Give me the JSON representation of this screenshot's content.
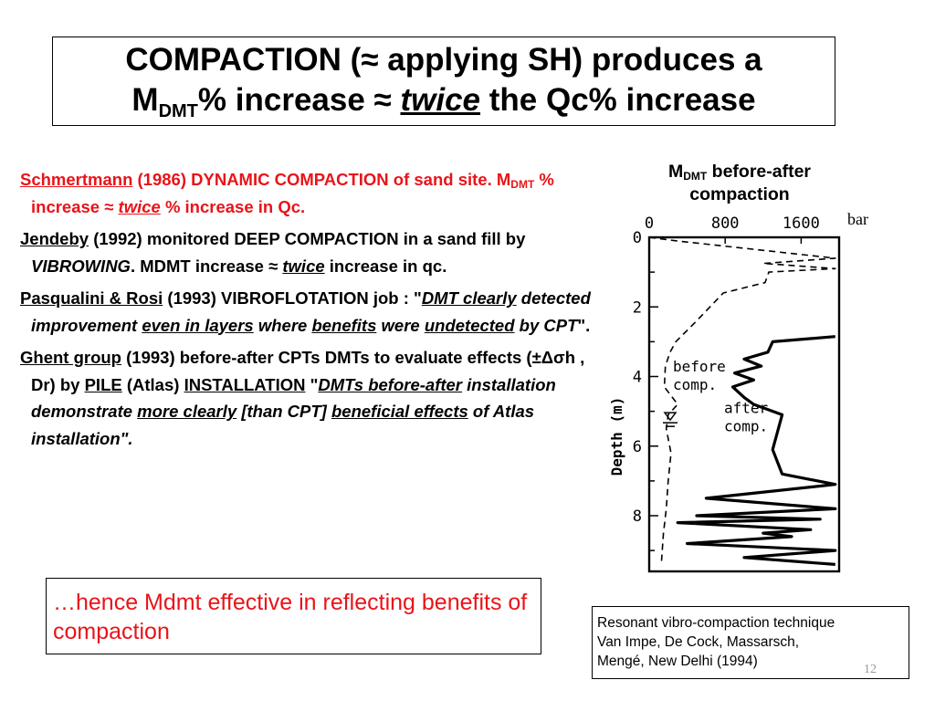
{
  "title": {
    "part1": "COMPACTION (",
    "approx1": "≈",
    "part2": " applying SH) produces a",
    "m": "M",
    "m_sub": "DMT",
    "part3": "% increase ",
    "approx2": "≈",
    "space": " ",
    "twice": "twice",
    "part4": "  the  Qc% increase"
  },
  "bullets": {
    "b1": {
      "author": "Schmertmann",
      "t1": " (1986) DYNAMIC COMPACTION of sand site. M",
      "sub": "DMT",
      "t2": " % increase ≈ ",
      "twice": "twice",
      "t3": " % increase in Qc."
    },
    "b2": {
      "author": "Jendeby",
      "t1": " (1992) monitored DEEP COMPACTION in a sand fill by ",
      "method": "VIBROWING",
      "t2": ". MDMT increase ≈ ",
      "twice": "twice",
      "t3": " increase in qc."
    },
    "b3": {
      "author": "Pasqualini & Rosi",
      "t1": " (1993) VIBROFLOTATION job : \"",
      "q1": "DMT clearly",
      "q2": " detected improvement ",
      "q3": "even in layers",
      "q4": " where ",
      "q5": "benefits",
      "q6": " were ",
      "q7": "undetected",
      "q8": " by CPT",
      "t2": "\"."
    },
    "b4": {
      "author": "Ghent group",
      "t1": " (1993) before-after CPTs DMTs to evaluate effects (±Δσh , Dr) by ",
      "pile": "PILE",
      "t2": " (Atlas) ",
      "installation": "INSTALLATION",
      "t3": " \"",
      "q1": "DMTs before-after",
      "q2": " installation demonstrate ",
      "q3": "more clearly",
      "q4": " [than CPT] ",
      "q5": "beneficial effects",
      "q6": " of Atlas installation\"."
    }
  },
  "conclusion": "…hence Mdmt effective in reflecting benefits of compaction",
  "chart_title": {
    "m": "M",
    "sub": "DMT",
    "rest": " before-after compaction"
  },
  "unit_label": "bar",
  "reference": {
    "line1": "Resonant vibro-compaction technique",
    "line2": "Van Impe, De Cock, Massarsch,",
    "line3": "Mengé, New Delhi (1994)"
  },
  "page_number": "12",
  "chart_data": {
    "type": "line",
    "x_ticks": [
      "0",
      "800",
      "1600"
    ],
    "y_ticks": [
      "0",
      "2",
      "4",
      "6",
      "8"
    ],
    "ylabel": "Depth  (m)",
    "xlim": [
      0,
      2000
    ],
    "ylim": [
      0,
      9.6
    ],
    "annotations": [
      "before\ncomp.",
      "after\ncomp."
    ],
    "series": [
      {
        "name": "before comp.",
        "style": "dashed",
        "points": [
          [
            0,
            0
          ],
          [
            280,
            0.1
          ],
          [
            1960,
            0.6
          ],
          [
            1200,
            0.75
          ],
          [
            1960,
            0.9
          ],
          [
            1260,
            1.0
          ],
          [
            1220,
            1.3
          ],
          [
            780,
            1.6
          ],
          [
            500,
            2.4
          ],
          [
            280,
            3.0
          ],
          [
            220,
            3.3
          ],
          [
            170,
            3.7
          ],
          [
            160,
            4.3
          ],
          [
            300,
            4.8
          ],
          [
            200,
            5.1
          ],
          [
            180,
            5.5
          ],
          [
            230,
            6.2
          ],
          [
            200,
            7.0
          ],
          [
            180,
            7.8
          ],
          [
            150,
            8.5
          ],
          [
            130,
            9.3
          ]
        ]
      },
      {
        "name": "after comp.",
        "points": [
          [
            1960,
            2.85
          ],
          [
            1300,
            3.0
          ],
          [
            1250,
            3.3
          ],
          [
            1000,
            3.5
          ],
          [
            1180,
            3.7
          ],
          [
            900,
            3.9
          ],
          [
            1100,
            4.1
          ],
          [
            880,
            4.3
          ],
          [
            1000,
            4.6
          ],
          [
            1100,
            4.8
          ],
          [
            1400,
            5.1
          ],
          [
            1350,
            5.6
          ],
          [
            1300,
            6.1
          ],
          [
            1400,
            6.8
          ],
          [
            1960,
            7.1
          ],
          [
            600,
            7.5
          ],
          [
            1960,
            7.8
          ],
          [
            500,
            8.0
          ],
          [
            1800,
            8.1
          ],
          [
            300,
            8.2
          ],
          [
            1700,
            8.4
          ],
          [
            1200,
            8.5
          ],
          [
            1500,
            8.6
          ],
          [
            400,
            8.8
          ],
          [
            1960,
            9.0
          ],
          [
            1000,
            9.2
          ],
          [
            1960,
            9.4
          ]
        ]
      }
    ]
  }
}
